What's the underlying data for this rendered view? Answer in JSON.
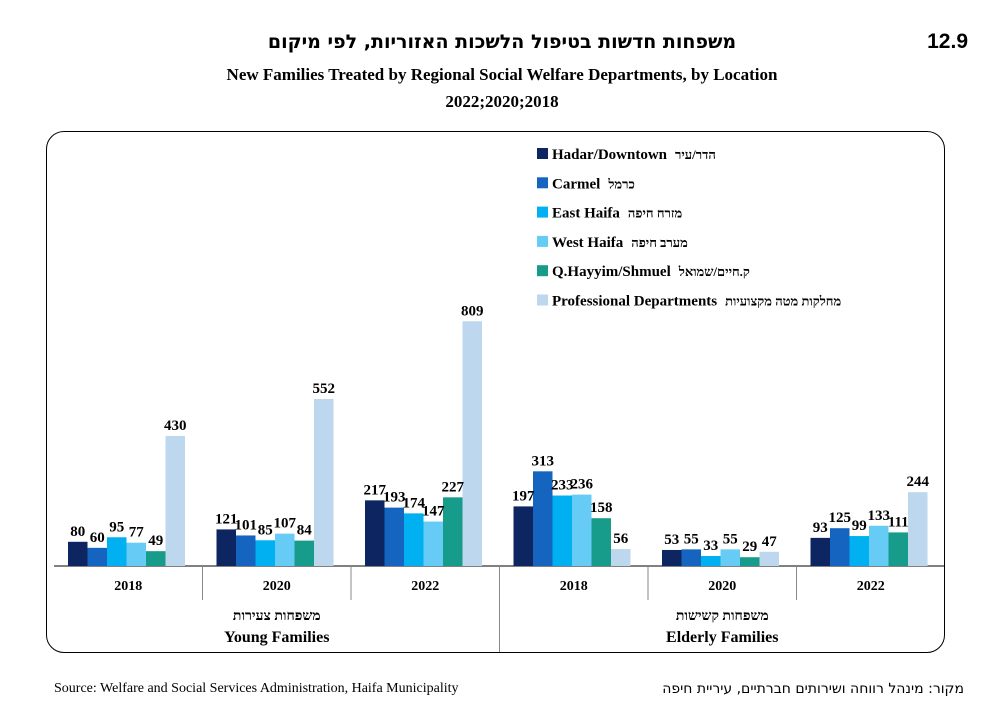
{
  "figure_number": "12.9",
  "title_he": "משפחות חדשות בטיפול הלשכות האזוריות, לפי מיקום",
  "title_en": "New Families Treated by Regional Social Welfare Departments, by Location",
  "years_line": "2022;2020;2018",
  "source_en": "Source: Welfare and Social Services Administration, Haifa Municipality",
  "source_he": "מקור: מינהל רווחה ושירותים חברתיים, עיריית חיפה",
  "chart_data": {
    "type": "bar",
    "legend_position": "top-right",
    "groups": [
      {
        "label_he": "משפחות צעירות",
        "label_en": "Young Families"
      },
      {
        "label_he": "משפחות קשישות",
        "label_en": "Elderly Families"
      }
    ],
    "categories": [
      "2018",
      "2020",
      "2022",
      "2018",
      "2020",
      "2022"
    ],
    "series": [
      {
        "name": "Hadar/Downtown",
        "name_he": "הדר/עיר",
        "color": "#0d2561",
        "values": [
          80,
          121,
          217,
          197,
          53,
          93
        ]
      },
      {
        "name": "Carmel",
        "name_he": "כרמל",
        "color": "#1565c0",
        "values": [
          60,
          101,
          193,
          313,
          55,
          125
        ]
      },
      {
        "name": "East Haifa",
        "name_he": "מזרח חיפה",
        "color": "#00b0f0",
        "values": [
          95,
          85,
          174,
          233,
          33,
          99
        ]
      },
      {
        "name": "West Haifa",
        "name_he": "מערב חיפה",
        "color": "#66ccf5",
        "values": [
          77,
          107,
          147,
          236,
          55,
          133
        ]
      },
      {
        "name": "Q.Hayyim/Shmuel",
        "name_he": "ק.חיים/שמואל",
        "color": "#179b8a",
        "values": [
          49,
          84,
          227,
          158,
          29,
          111
        ]
      },
      {
        "name": "Professional Departments",
        "name_he": "מחלקות מטה מקצועיות",
        "color": "#bcd7ee",
        "values": [
          430,
          552,
          809,
          56,
          47,
          244
        ]
      }
    ],
    "ylim": [
      0,
      850
    ]
  }
}
